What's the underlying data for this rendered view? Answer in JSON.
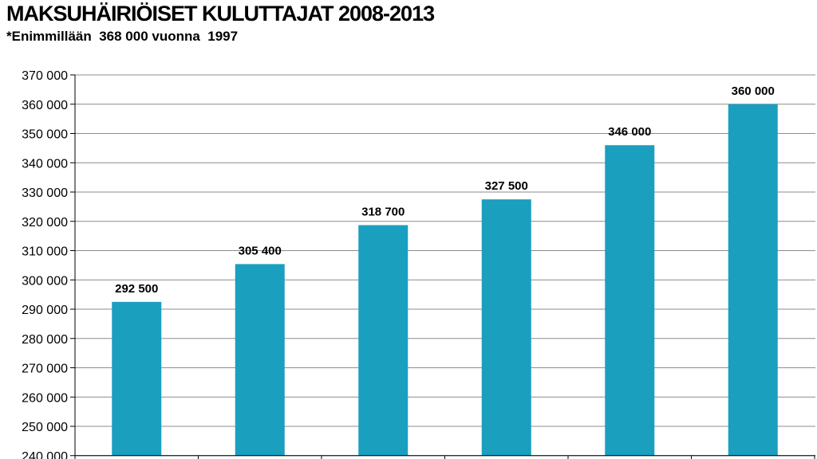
{
  "chart_data": {
    "type": "bar",
    "title": "MAKSUHÄIRIÖISET KULUTTAJAT 2008-2013",
    "subtitle": "*Enimmillään  368 000 vuonna  1997",
    "xlabel": "",
    "ylabel": "",
    "categories": [
      "",
      "",
      "",
      "",
      "",
      ""
    ],
    "values": [
      292500,
      305400,
      318700,
      327500,
      346000,
      360000
    ],
    "data_labels": [
      "292 500",
      "305 400",
      "318 700",
      "327 500",
      "346 000",
      "360 000"
    ],
    "ylim": [
      240000,
      370000
    ],
    "yticks": [
      240000,
      250000,
      260000,
      270000,
      280000,
      290000,
      300000,
      310000,
      320000,
      330000,
      340000,
      350000,
      360000,
      370000
    ],
    "ytick_labels": [
      "240 000",
      "250 000",
      "260 000",
      "270 000",
      "280 000",
      "290 000",
      "300 000",
      "310 000",
      "320 000",
      "330 000",
      "340 000",
      "350 000",
      "360 000",
      "370 000"
    ],
    "grid": true,
    "legend": "none",
    "bar_color": "#1a9fbf",
    "grid_color": "#8c8c8c"
  }
}
